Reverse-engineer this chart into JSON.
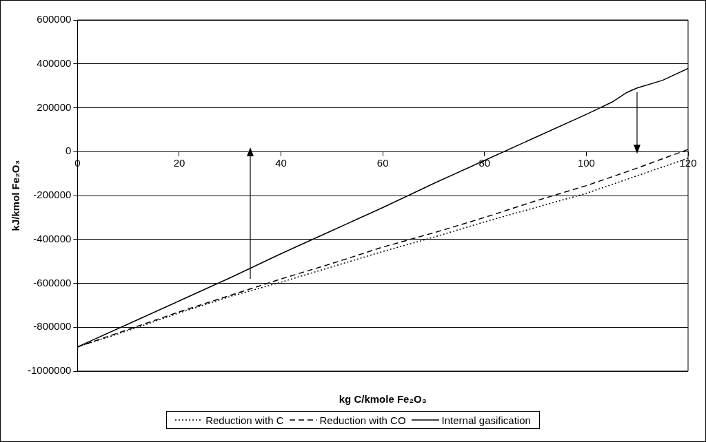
{
  "chart_data": {
    "type": "line",
    "xlabel": "kg C/kmole Fe₂O₃",
    "ylabel": "kJ/kmol Fe₂O₃",
    "xlim": [
      0,
      120
    ],
    "xticks": [
      0,
      20,
      40,
      60,
      80,
      100,
      120
    ],
    "ylim": [
      -1000000,
      600000
    ],
    "yticks": [
      -1000000,
      -800000,
      -600000,
      -400000,
      -200000,
      0,
      200000,
      400000,
      600000
    ],
    "grid": "y",
    "legend": "bottom",
    "marker": "none",
    "series": [
      {
        "name": "Reduction with C",
        "color": "#000000",
        "line_style": "dotted",
        "x": [
          0,
          10,
          20,
          30,
          40,
          50,
          60,
          70,
          80,
          90,
          100,
          110,
          120
        ],
        "values": [
          -890000,
          -815000,
          -735000,
          -660000,
          -595000,
          -525000,
          -455000,
          -390000,
          -320000,
          -255000,
          -190000,
          -110000,
          -30000
        ]
      },
      {
        "name": "Reduction with CO",
        "color": "#000000",
        "line_style": "dashed",
        "x": [
          0,
          10,
          20,
          30,
          40,
          50,
          60,
          70,
          80,
          90,
          100,
          110,
          120
        ],
        "values": [
          -890000,
          -810000,
          -730000,
          -655000,
          -580000,
          -510000,
          -435000,
          -370000,
          -300000,
          -225000,
          -155000,
          -75000,
          10000
        ]
      },
      {
        "name": "Internal gasification",
        "color": "#000000",
        "line_style": "solid",
        "x": [
          0,
          10,
          20,
          30,
          40,
          50,
          60,
          70,
          80,
          90,
          100,
          105,
          108,
          110,
          115,
          120
        ],
        "values": [
          -890000,
          -785000,
          -680000,
          -575000,
          -465000,
          -360000,
          -255000,
          -145000,
          -40000,
          65000,
          170000,
          225000,
          270000,
          290000,
          325000,
          379000
        ]
      }
    ]
  }
}
